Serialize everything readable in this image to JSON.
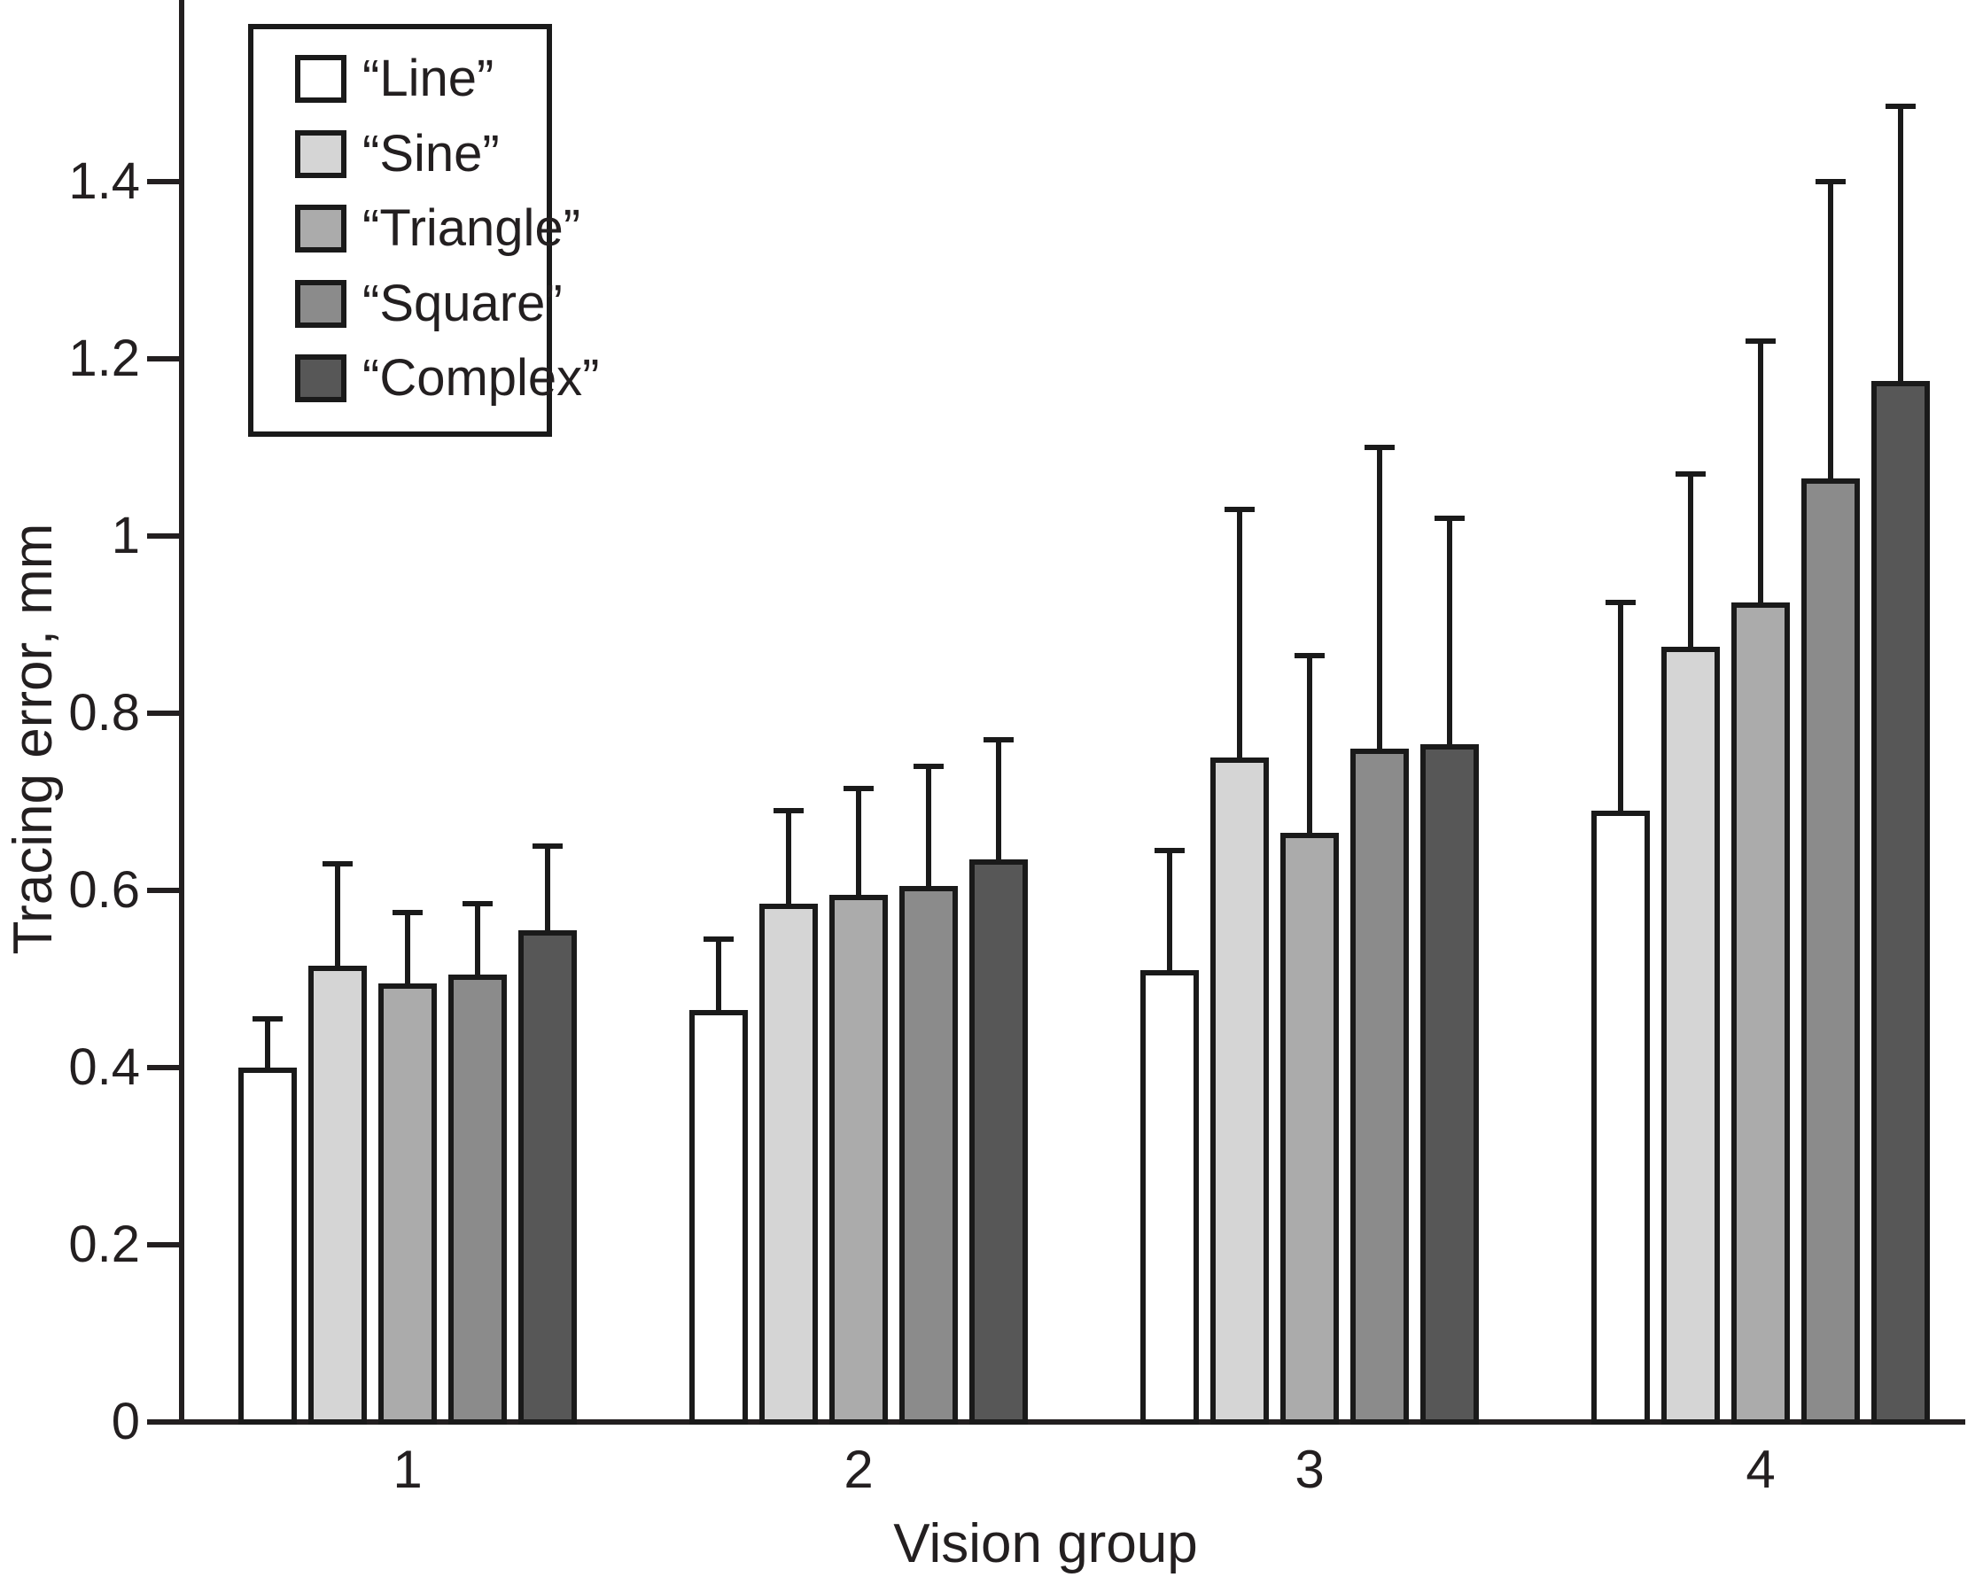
{
  "chart_data": {
    "type": "bar",
    "title": "",
    "xlabel": "Vision group",
    "ylabel": "Tracing error, mm",
    "categories": [
      "1",
      "2",
      "3",
      "4"
    ],
    "ylim": [
      0,
      1.6
    ],
    "yticks": [
      0,
      0.2,
      0.4,
      0.6,
      0.8,
      1,
      1.2,
      1.4
    ],
    "ytick_labels": [
      "0",
      "0.2",
      "0.4",
      "0.6",
      "0.8",
      "1",
      "1.2",
      "1.4"
    ],
    "grid": false,
    "legend_position": "top-left",
    "error_bars": "upper-only-with-caps",
    "axis_color": "#231f20",
    "bar_outline_color": "#1a1a1a",
    "series": [
      {
        "name": "“Line”",
        "color": "#ffffff",
        "values": [
          0.4,
          0.465,
          0.51,
          0.69
        ],
        "error_tops": [
          0.455,
          0.545,
          0.645,
          0.925
        ]
      },
      {
        "name": "“Sine”",
        "color": "#d5d5d5",
        "values": [
          0.515,
          0.585,
          0.75,
          0.875
        ],
        "error_tops": [
          0.63,
          0.69,
          1.03,
          1.07
        ]
      },
      {
        "name": "“Triangle”",
        "color": "#ababab",
        "values": [
          0.495,
          0.595,
          0.665,
          0.925
        ],
        "error_tops": [
          0.575,
          0.715,
          0.865,
          1.22
        ]
      },
      {
        "name": "“Square”",
        "color": "#8b8b8b",
        "values": [
          0.505,
          0.605,
          0.76,
          1.065
        ],
        "error_tops": [
          0.585,
          0.74,
          1.1,
          1.4
        ]
      },
      {
        "name": "“Complex”",
        "color": "#575757",
        "values": [
          0.555,
          0.635,
          0.765,
          1.175
        ],
        "error_tops": [
          0.65,
          0.77,
          1.02,
          1.485
        ]
      }
    ]
  }
}
